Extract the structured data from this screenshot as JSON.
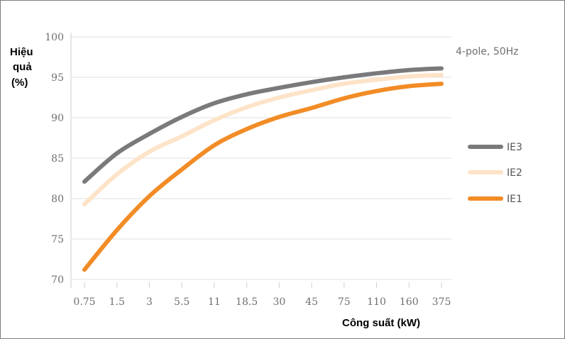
{
  "chart_data": {
    "type": "line",
    "ylabel": [
      "Hiệu",
      "quả",
      "(%)"
    ],
    "xlabel": "Công suất (kW)",
    "annotation": "4-pole, 50Hz",
    "categories": [
      "0.75",
      "1.5",
      "3",
      "5.5",
      "11",
      "18.5",
      "30",
      "45",
      "75",
      "110",
      "160",
      "375"
    ],
    "yticks": [
      70,
      75,
      80,
      85,
      90,
      95,
      100
    ],
    "ylim": [
      70,
      100
    ],
    "grid": true,
    "legend_position": "right",
    "series": [
      {
        "name": "IE3",
        "color": "#7a7a7c",
        "values": [
          82.1,
          85.6,
          88.0,
          90.1,
          91.8,
          92.9,
          93.7,
          94.4,
          95.0,
          95.5,
          95.9,
          96.1
        ]
      },
      {
        "name": "IE2",
        "color": "#fde3c8",
        "values": [
          79.3,
          83.0,
          85.8,
          87.7,
          89.7,
          91.3,
          92.5,
          93.4,
          94.2,
          94.7,
          95.1,
          95.3
        ]
      },
      {
        "name": "IE1",
        "color": "#f28c26",
        "values": [
          71.2,
          76.1,
          80.3,
          83.6,
          86.6,
          88.6,
          90.1,
          91.2,
          92.4,
          93.3,
          93.9,
          94.2
        ]
      }
    ]
  }
}
